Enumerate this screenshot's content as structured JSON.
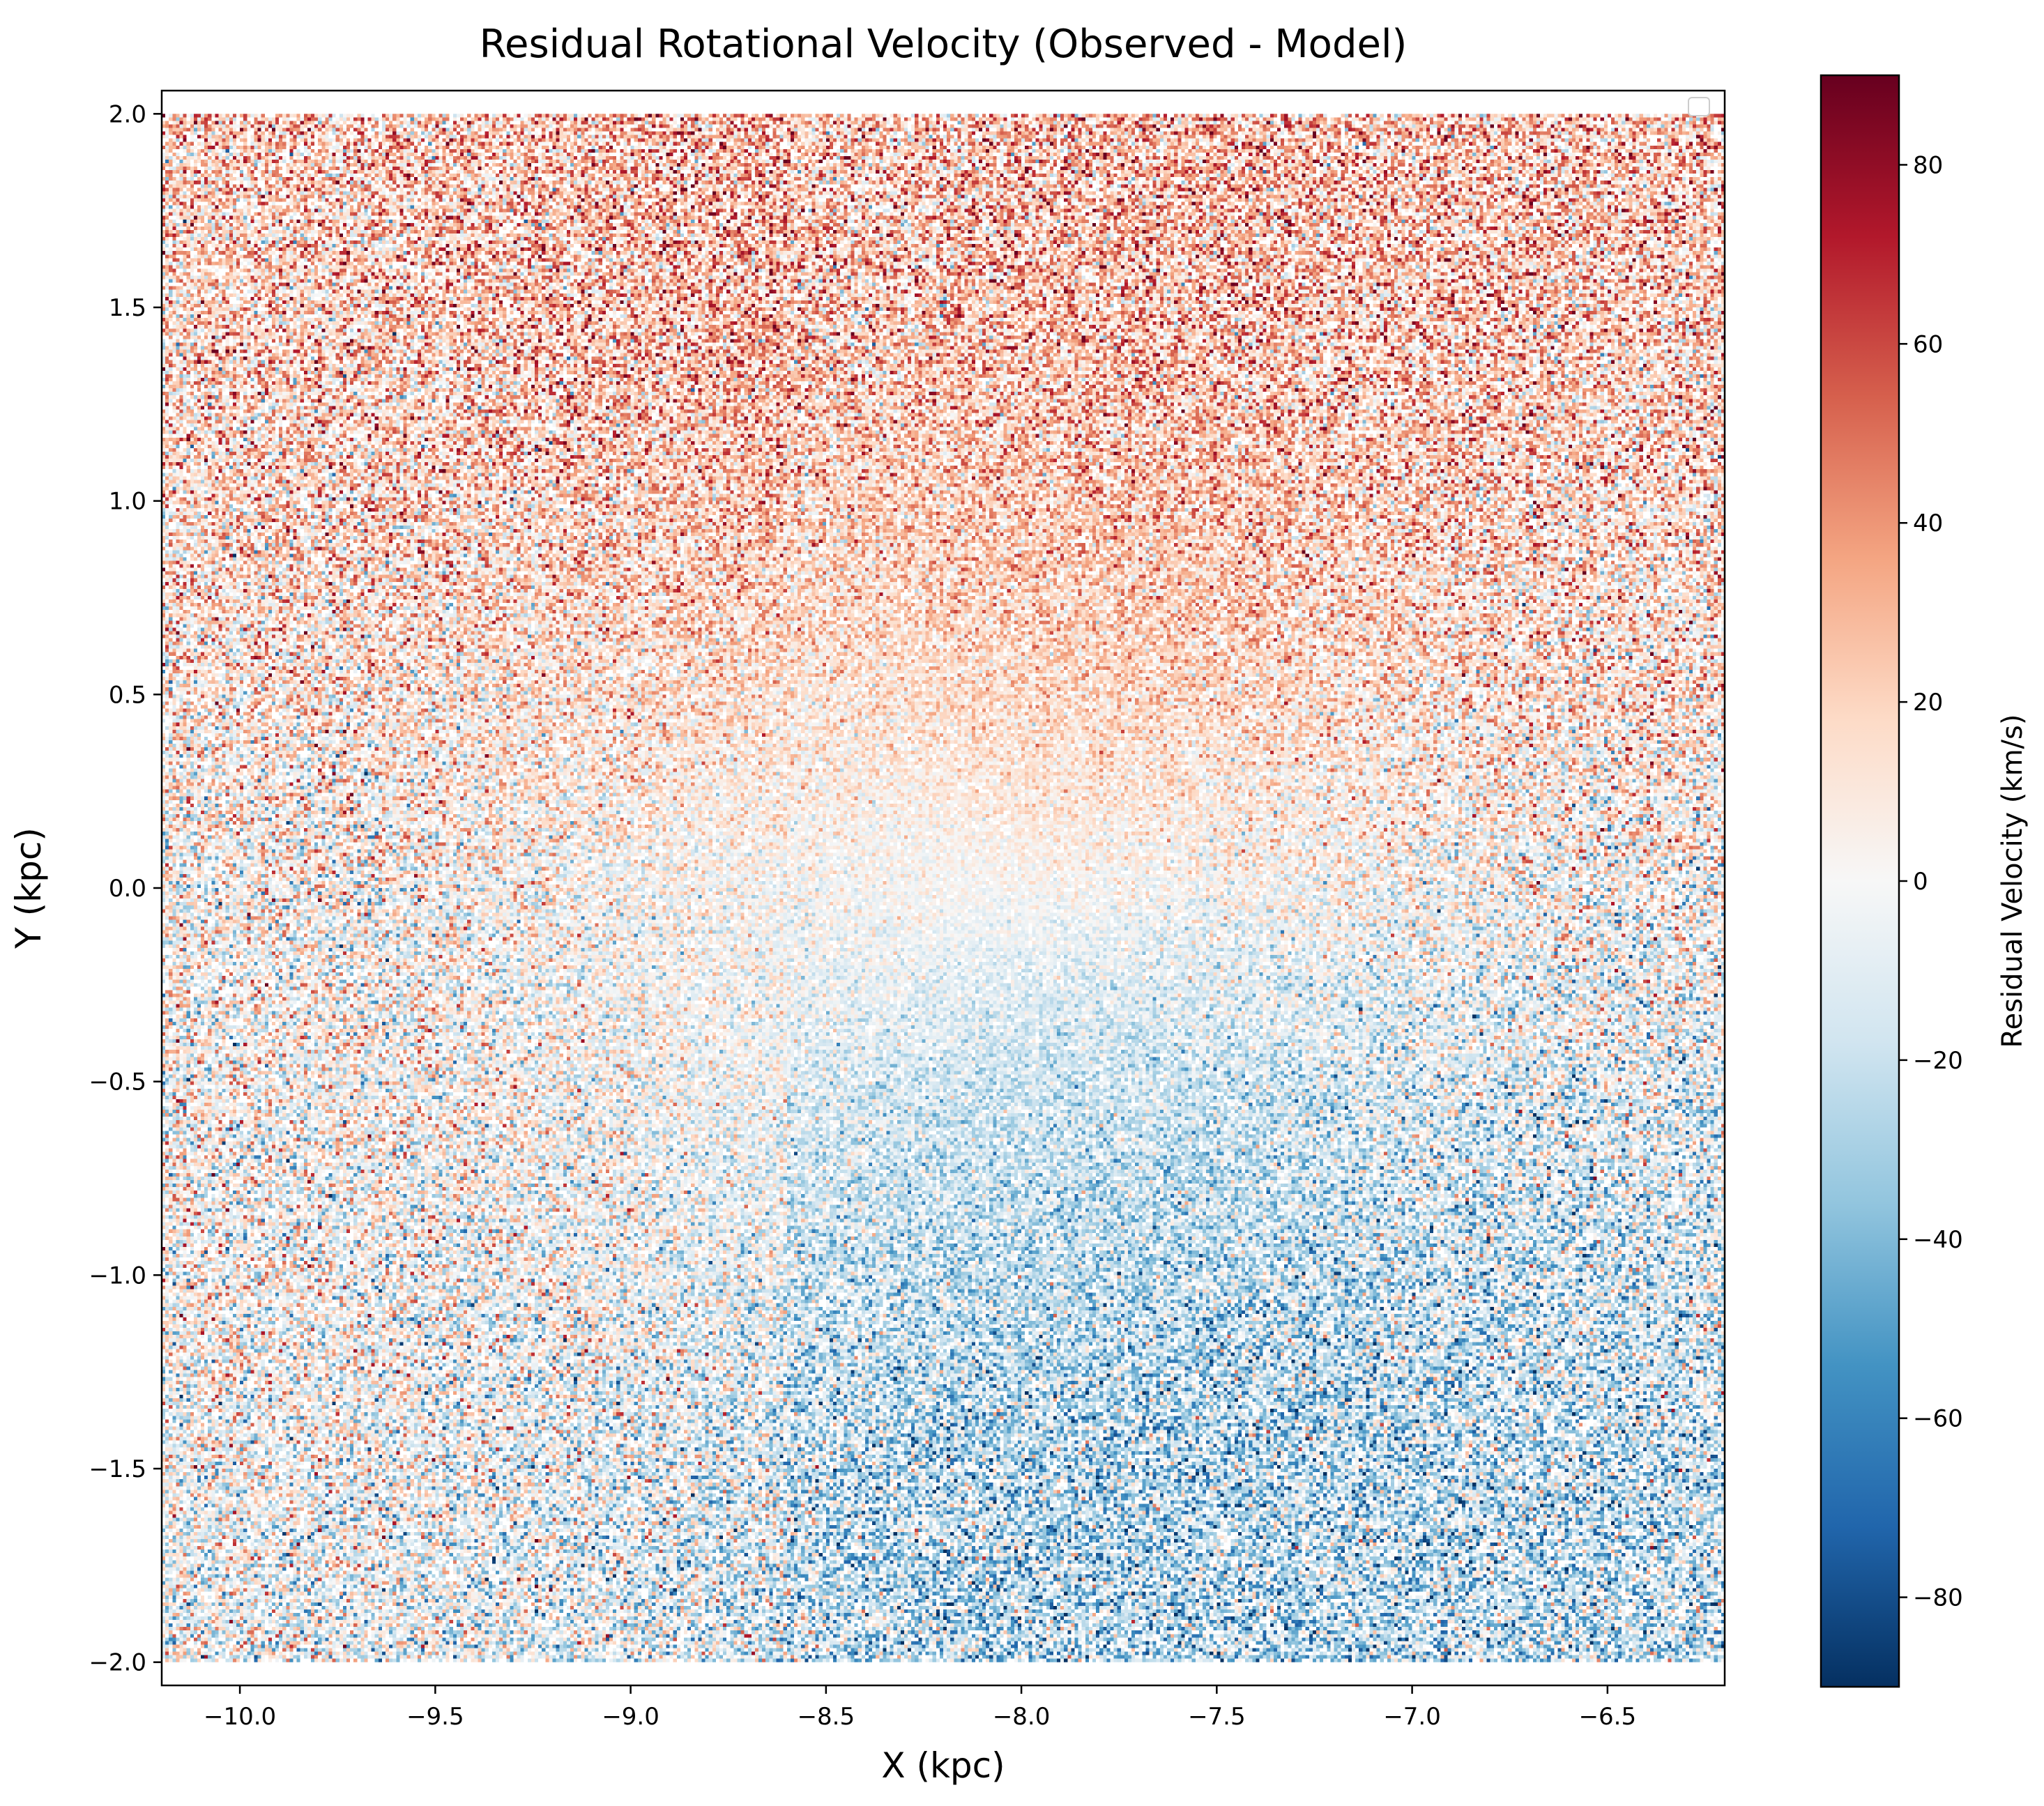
{
  "chart_data": {
    "type": "heatmap",
    "title": "Residual Rotational Velocity (Observed - Model)",
    "xlabel": "X (kpc)",
    "ylabel": "Y (kpc)",
    "xlim": [
      -10.2,
      -6.2
    ],
    "ylim": [
      -2.06,
      2.06
    ],
    "data_extent": {
      "x": [
        -10.2,
        -6.2
      ],
      "y": [
        -2.0,
        2.0
      ]
    },
    "grid": false,
    "legend": {
      "placement": "top-right",
      "entries": []
    },
    "x_ticks": [
      {
        "value": -10.0,
        "label": "−10.0"
      },
      {
        "value": -9.5,
        "label": "−9.5"
      },
      {
        "value": -9.0,
        "label": "−9.0"
      },
      {
        "value": -8.5,
        "label": "−8.5"
      },
      {
        "value": -8.0,
        "label": "−8.0"
      },
      {
        "value": -7.5,
        "label": "−7.5"
      },
      {
        "value": -7.0,
        "label": "−7.0"
      },
      {
        "value": -6.5,
        "label": "−6.5"
      }
    ],
    "y_ticks": [
      {
        "value": -2.0,
        "label": "−2.0"
      },
      {
        "value": -1.5,
        "label": "−1.5"
      },
      {
        "value": -1.0,
        "label": "−1.0"
      },
      {
        "value": -0.5,
        "label": "−0.5"
      },
      {
        "value": 0.0,
        "label": "0.0"
      },
      {
        "value": 0.5,
        "label": "0.5"
      },
      {
        "value": 1.0,
        "label": "1.0"
      },
      {
        "value": 1.5,
        "label": "1.5"
      },
      {
        "value": 2.0,
        "label": "2.0"
      }
    ],
    "colorbar": {
      "label": "Residual Velocity (km/s)",
      "colormap": "RdBu_r",
      "range": [
        -90,
        90
      ],
      "ticks": [
        {
          "value": -80,
          "label": "−80"
        },
        {
          "value": -60,
          "label": "−60"
        },
        {
          "value": -40,
          "label": "−40"
        },
        {
          "value": -20,
          "label": "−20"
        },
        {
          "value": 0,
          "label": "0"
        },
        {
          "value": 20,
          "label": "20"
        },
        {
          "value": 40,
          "label": "40"
        },
        {
          "value": 60,
          "label": "60"
        },
        {
          "value": 80,
          "label": "80"
        }
      ],
      "stops": [
        "#053061",
        "#2166ac",
        "#4393c3",
        "#92c5de",
        "#d1e5f0",
        "#f7f7f7",
        "#fddbc7",
        "#f4a582",
        "#d6604d",
        "#b2182b",
        "#67001f"
      ]
    },
    "field_description": {
      "center": [
        -8.1,
        0.0
      ],
      "positive_lobe": "upper-right quadrant, residual up to ~+60 km/s",
      "negative_lobe": "lower-right quadrant, residual down to ~-60 km/s",
      "left_side": "weak mixed residuals near 0 to +20 km/s"
    }
  }
}
